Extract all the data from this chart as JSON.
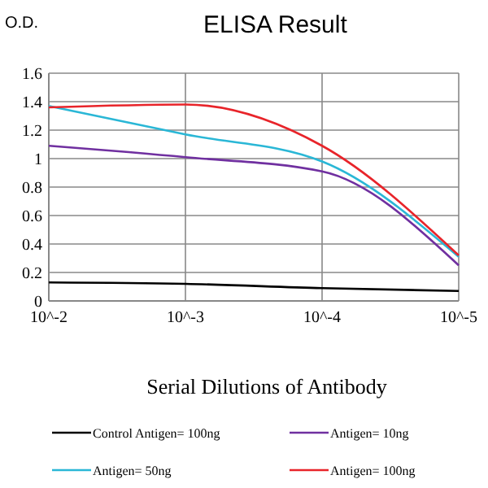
{
  "chart_data": {
    "type": "line",
    "title": "ELISA Result",
    "ylabel": "O.D.",
    "xlabel": "Serial Dilutions of Antibody",
    "categories": [
      "10^-2",
      "10^-3",
      "10^-4",
      "10^-5"
    ],
    "series": [
      {
        "name": "Control Antigen= 100ng",
        "color": "#000000",
        "values": [
          0.13,
          0.12,
          0.09,
          0.07
        ]
      },
      {
        "name": "Antigen= 10ng",
        "color": "#7030a0",
        "values": [
          1.09,
          1.01,
          0.91,
          0.25
        ]
      },
      {
        "name": "Antigen= 50ng",
        "color": "#2ab7d6",
        "values": [
          1.37,
          1.17,
          0.98,
          0.31
        ]
      },
      {
        "name": "Antigen= 100ng",
        "color": "#e8242a",
        "values": [
          1.36,
          1.38,
          1.09,
          0.32
        ]
      }
    ],
    "ylim": [
      0,
      1.6
    ],
    "yticks": [
      0,
      0.2,
      0.4,
      0.6,
      0.8,
      1,
      1.2,
      1.4,
      1.6
    ],
    "grid": true,
    "legend": "bottom",
    "marker": "none",
    "line_style": "solid"
  }
}
